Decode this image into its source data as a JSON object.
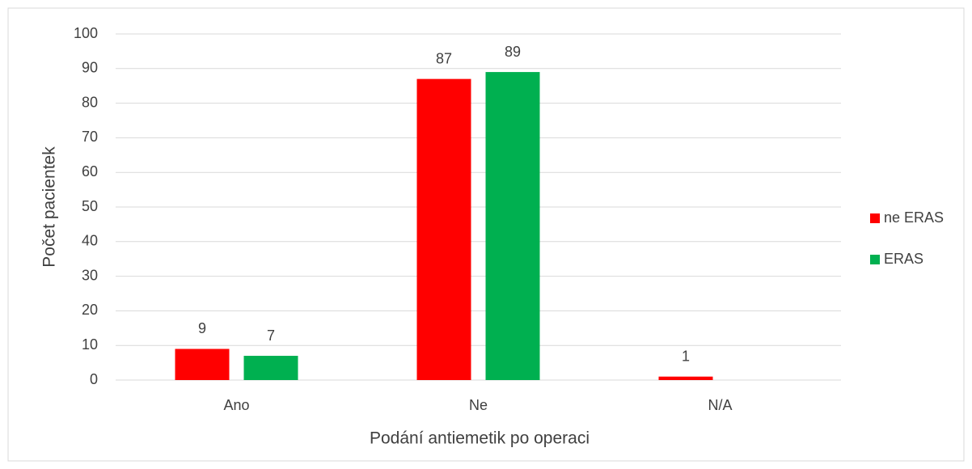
{
  "chart_data": {
    "type": "bar",
    "categories": [
      "Ano",
      "Ne",
      "N/A"
    ],
    "series": [
      {
        "name": "ne ERAS",
        "color": "#ff0000",
        "values": [
          9,
          87,
          1
        ]
      },
      {
        "name": "ERAS",
        "color": "#00b050",
        "values": [
          7,
          89,
          null
        ]
      }
    ],
    "ylim": [
      0,
      100
    ],
    "yticks": [
      0,
      10,
      20,
      30,
      40,
      50,
      60,
      70,
      80,
      90,
      100
    ],
    "grid": true,
    "legend": "right",
    "x_label": "Podání antiemetik po operaci",
    "y_label": "Počet pacientek"
  }
}
